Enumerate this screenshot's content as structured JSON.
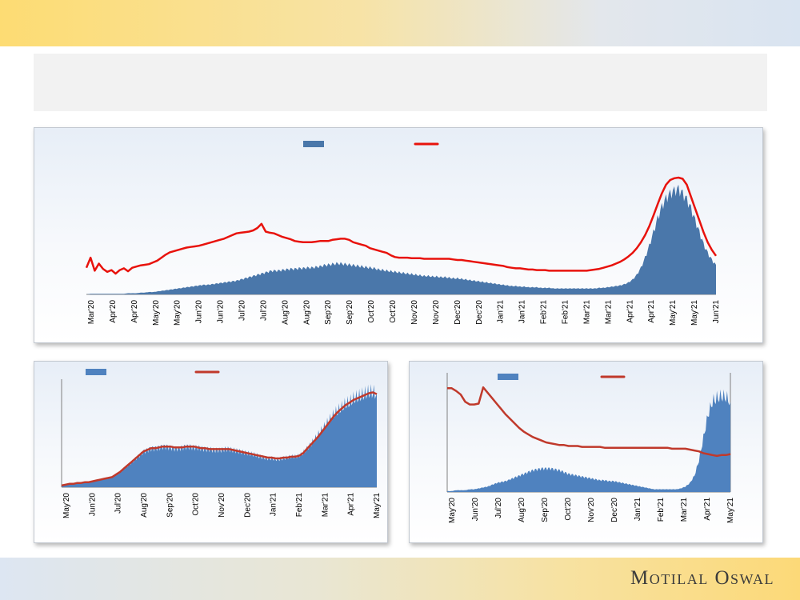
{
  "brand": {
    "name": "Motilal Oswal"
  },
  "header": {
    "title": ""
  },
  "colors": {
    "area": "#4a77aa",
    "area_small": "#4f82bf",
    "line_main": "#e8120c",
    "line_small": "#c0392b"
  },
  "chart_data": [
    {
      "id": "chart-top",
      "type": "area",
      "title": "",
      "series": [
        {
          "name": "",
          "kind": "area",
          "values": [
            0,
            1,
            1,
            1,
            1,
            1,
            1,
            1,
            1,
            1,
            2,
            2,
            2,
            3,
            3,
            4,
            4,
            5,
            6,
            7,
            8,
            9,
            10,
            11,
            12,
            13,
            14,
            15,
            16,
            16,
            17,
            18,
            19,
            20,
            21,
            22,
            23,
            25,
            27,
            29,
            31,
            33,
            35,
            37,
            39,
            40,
            40,
            41,
            42,
            43,
            43,
            44,
            44,
            45,
            45,
            46,
            47,
            49,
            50,
            51,
            52,
            52,
            51,
            50,
            49,
            48,
            47,
            46,
            45,
            44,
            42,
            41,
            40,
            39,
            38,
            37,
            36,
            35,
            34,
            33,
            32,
            31,
            31,
            30,
            30,
            29,
            29,
            28,
            27,
            27,
            26,
            25,
            24,
            23,
            22,
            21,
            20,
            19,
            18,
            17,
            16,
            15,
            14,
            14,
            13,
            13,
            12,
            12,
            12,
            11,
            11,
            11,
            10,
            10,
            10,
            10,
            10,
            10,
            10,
            10,
            10,
            10,
            10,
            11,
            11,
            12,
            13,
            14,
            15,
            17,
            20,
            25,
            33,
            45,
            62,
            82,
            105,
            128,
            148,
            162,
            170,
            175,
            178,
            170,
            160,
            145,
            125,
            105,
            85,
            70,
            58,
            50
          ]
        },
        {
          "name": "",
          "kind": "line",
          "values": [
            45,
            62,
            40,
            52,
            43,
            38,
            41,
            35,
            41,
            44,
            39,
            45,
            47,
            49,
            50,
            51,
            54,
            57,
            62,
            67,
            71,
            73,
            75,
            77,
            79,
            80,
            81,
            82,
            84,
            86,
            88,
            90,
            92,
            94,
            97,
            100,
            103,
            104,
            105,
            106,
            108,
            112,
            119,
            106,
            104,
            103,
            100,
            97,
            95,
            93,
            90,
            89,
            88,
            88,
            88,
            89,
            90,
            90,
            90,
            92,
            93,
            94,
            94,
            92,
            88,
            86,
            84,
            82,
            78,
            76,
            74,
            72,
            70,
            66,
            63,
            62,
            62,
            62,
            61,
            61,
            61,
            60,
            60,
            60,
            60,
            60,
            60,
            60,
            59,
            58,
            58,
            57,
            56,
            55,
            54,
            53,
            52,
            51,
            50,
            49,
            48,
            46,
            45,
            44,
            44,
            43,
            42,
            42,
            41,
            41,
            41,
            40,
            40,
            40,
            40,
            40,
            40,
            40,
            40,
            40,
            40,
            41,
            42,
            43,
            45,
            47,
            49,
            52,
            55,
            59,
            64,
            70,
            78,
            88,
            100,
            115,
            133,
            152,
            170,
            185,
            193,
            196,
            197,
            195,
            185,
            165,
            145,
            125,
            105,
            88,
            75,
            65
          ]
        }
      ],
      "ylim": [
        0,
        220
      ],
      "x_ticks": [
        "Mar'20",
        "Apr'20",
        "Apr'20",
        "May'20",
        "May'20",
        "Jun'20",
        "Jun'20",
        "Jul'20",
        "Jul'20",
        "Aug'20",
        "Aug'20",
        "Sep'20",
        "Sep'20",
        "Oct'20",
        "Oct'20",
        "Nov'20",
        "Nov'20",
        "Dec'20",
        "Dec'20",
        "Jan'21",
        "Jan'21",
        "Feb'21",
        "Feb'21",
        "Mar'21",
        "Mar'21",
        "Apr'21",
        "Apr'21",
        "May'21",
        "May'21",
        "Jun'21"
      ],
      "legend": [
        "",
        ""
      ]
    },
    {
      "id": "chart-bottom-left",
      "type": "area",
      "title": "",
      "series": [
        {
          "name": "",
          "kind": "area",
          "values": [
            2,
            3,
            4,
            4,
            5,
            5,
            6,
            6,
            7,
            8,
            9,
            10,
            11,
            12,
            15,
            18,
            22,
            26,
            30,
            34,
            38,
            42,
            44,
            46,
            46,
            47,
            48,
            48,
            47,
            46,
            46,
            47,
            48,
            48,
            47,
            47,
            46,
            45,
            45,
            44,
            44,
            44,
            45,
            45,
            44,
            43,
            42,
            41,
            40,
            39,
            38,
            36,
            35,
            34,
            34,
            33,
            33,
            34,
            35,
            36,
            36,
            37,
            40,
            45,
            50,
            56,
            62,
            68,
            74,
            80,
            86,
            90,
            94,
            98,
            100,
            104,
            106,
            108,
            110,
            112,
            112,
            110
          ]
        },
        {
          "name": "",
          "kind": "line",
          "values": [
            2,
            3,
            4,
            4,
            5,
            5,
            6,
            6,
            7,
            8,
            9,
            10,
            11,
            12,
            15,
            18,
            22,
            26,
            30,
            34,
            38,
            42,
            44,
            46,
            46,
            47,
            48,
            48,
            48,
            47,
            47,
            47,
            48,
            48,
            48,
            47,
            46,
            46,
            45,
            45,
            45,
            45,
            45,
            45,
            44,
            43,
            42,
            41,
            40,
            39,
            38,
            37,
            36,
            35,
            35,
            34,
            34,
            35,
            35,
            36,
            36,
            37,
            40,
            45,
            50,
            55,
            60,
            66,
            72,
            78,
            84,
            89,
            93,
            97,
            100,
            103,
            105,
            107,
            109,
            111,
            112,
            110
          ]
        }
      ],
      "ylim": [
        0,
        120
      ],
      "x_ticks": [
        "May'20",
        "Jun'20",
        "Jul'20",
        "Aug'20",
        "Sep'20",
        "Oct'20",
        "Nov'20",
        "Dec'20",
        "Jan'21",
        "Feb'21",
        "Mar'21",
        "Apr'21",
        "May'21"
      ],
      "legend": [
        "",
        ""
      ]
    },
    {
      "id": "chart-bottom-right",
      "type": "area",
      "title": "",
      "series": [
        {
          "name": "",
          "kind": "area",
          "values": [
            1,
            1,
            2,
            2,
            2,
            3,
            3,
            4,
            5,
            6,
            8,
            10,
            11,
            12,
            14,
            16,
            18,
            20,
            22,
            24,
            25,
            26,
            26,
            26,
            25,
            24,
            22,
            20,
            19,
            18,
            17,
            16,
            15,
            14,
            13,
            13,
            12,
            12,
            11,
            10,
            9,
            8,
            7,
            6,
            5,
            4,
            3,
            3,
            3,
            3,
            3,
            3,
            4,
            6,
            10,
            18,
            35,
            60,
            85,
            100,
            104,
            106,
            105,
            100
          ]
        },
        {
          "name": "",
          "kind": "line",
          "values": [
            115,
            115,
            112,
            108,
            100,
            97,
            97,
            98,
            116,
            110,
            104,
            98,
            92,
            86,
            81,
            76,
            71,
            67,
            64,
            61,
            59,
            57,
            55,
            54,
            53,
            52,
            52,
            51,
            51,
            51,
            50,
            50,
            50,
            50,
            50,
            49,
            49,
            49,
            49,
            49,
            49,
            49,
            49,
            49,
            49,
            49,
            49,
            49,
            49,
            49,
            48,
            48,
            48,
            48,
            47,
            46,
            45,
            43,
            42,
            41,
            40,
            41,
            41,
            42
          ]
        }
      ],
      "ylim": [
        0,
        125
      ],
      "x_ticks": [
        "May'20",
        "Jun'20",
        "Jul'20",
        "Aug'20",
        "Sep'20",
        "Oct'20",
        "Nov'20",
        "Dec'20",
        "Jan'21",
        "Feb'21",
        "Mar'21",
        "Apr'21",
        "May'21"
      ],
      "legend": [
        "",
        ""
      ]
    }
  ]
}
